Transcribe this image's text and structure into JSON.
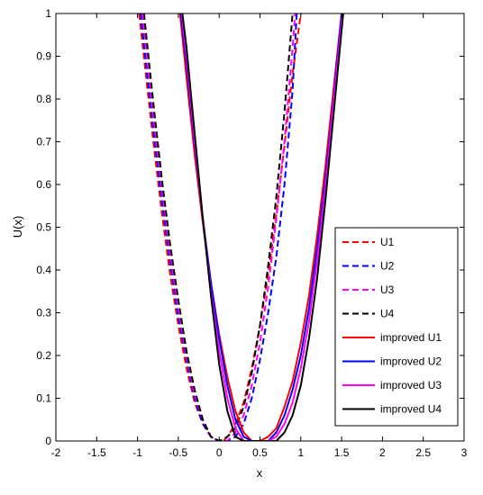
{
  "chart_data": {
    "type": "line",
    "title": "",
    "xlabel": "x",
    "ylabel": "U(x)",
    "xlim": [
      -2,
      3
    ],
    "ylim": [
      0,
      1
    ],
    "xticks": [
      -2,
      -1.5,
      -1,
      -0.5,
      0,
      0.5,
      1,
      1.5,
      2,
      2.5,
      3
    ],
    "xtick_labels": [
      "-2",
      "-1.5",
      "-1",
      "-0.5",
      "0",
      "0.5",
      "1",
      "1.5",
      "2",
      "2.5",
      "3"
    ],
    "yticks": [
      0,
      0.1,
      0.2,
      0.3,
      0.4,
      0.5,
      0.6,
      0.7,
      0.8,
      0.9,
      1
    ],
    "ytick_labels": [
      "0",
      "0.1",
      "0.2",
      "0.3",
      "0.4",
      "0.5",
      "0.6",
      "0.7",
      "0.8",
      "0.9",
      "1"
    ],
    "grid": false,
    "legend_position": "lower-right",
    "series": [
      {
        "name": "U1",
        "color": "#ff0000",
        "dash": true,
        "x": [
          -0.98,
          -0.9,
          -0.8,
          -0.7,
          -0.6,
          -0.5,
          -0.4,
          -0.3,
          -0.2,
          -0.1,
          0.0,
          0.05,
          0.1,
          0.2,
          0.3,
          0.4,
          0.5,
          0.6,
          0.7,
          0.8,
          0.9,
          0.95,
          1.0
        ],
        "y": [
          1.0,
          0.86,
          0.69,
          0.53,
          0.39,
          0.27,
          0.17,
          0.09,
          0.04,
          0.01,
          0.0,
          0.0,
          0.01,
          0.04,
          0.09,
          0.17,
          0.27,
          0.39,
          0.53,
          0.69,
          0.86,
          0.93,
          1.0
        ]
      },
      {
        "name": "U2",
        "color": "#0000ff",
        "dash": true,
        "x": [
          -0.96,
          -0.9,
          -0.8,
          -0.7,
          -0.6,
          -0.5,
          -0.4,
          -0.3,
          -0.2,
          -0.1,
          0.0,
          0.1,
          0.2,
          0.3,
          0.4,
          0.5,
          0.6,
          0.7,
          0.8,
          0.9,
          0.95
        ],
        "y": [
          1.0,
          0.89,
          0.72,
          0.56,
          0.42,
          0.29,
          0.19,
          0.1,
          0.04,
          0.01,
          0.0,
          0.0,
          0.01,
          0.04,
          0.1,
          0.19,
          0.3,
          0.43,
          0.6,
          0.82,
          1.0
        ]
      },
      {
        "name": "U3",
        "color": "#ff00ff",
        "dash": true,
        "x": [
          -0.94,
          -0.9,
          -0.8,
          -0.7,
          -0.6,
          -0.5,
          -0.4,
          -0.3,
          -0.2,
          -0.1,
          0.0,
          0.1,
          0.2,
          0.3,
          0.4,
          0.5,
          0.6,
          0.7,
          0.8,
          0.9,
          0.93
        ],
        "y": [
          1.0,
          0.93,
          0.75,
          0.59,
          0.44,
          0.31,
          0.2,
          0.11,
          0.05,
          0.01,
          0.0,
          0.0,
          0.02,
          0.06,
          0.13,
          0.23,
          0.36,
          0.52,
          0.7,
          0.92,
          1.0
        ]
      },
      {
        "name": "U4",
        "color": "#000000",
        "dash": true,
        "x": [
          -0.92,
          -0.8,
          -0.7,
          -0.6,
          -0.5,
          -0.4,
          -0.3,
          -0.2,
          -0.1,
          0.0,
          0.1,
          0.2,
          0.3,
          0.4,
          0.5,
          0.6,
          0.7,
          0.8,
          0.9
        ],
        "y": [
          1.0,
          0.78,
          0.61,
          0.46,
          0.33,
          0.21,
          0.12,
          0.05,
          0.01,
          0.0,
          0.01,
          0.03,
          0.08,
          0.16,
          0.27,
          0.41,
          0.57,
          0.77,
          1.0
        ]
      },
      {
        "name": "improved U1",
        "color": "#ff0000",
        "dash": false,
        "x": [
          -0.48,
          -0.4,
          -0.3,
          -0.2,
          -0.1,
          0.0,
          0.1,
          0.2,
          0.3,
          0.4,
          0.5,
          0.6,
          0.7,
          0.8,
          0.9,
          1.0,
          1.1,
          1.2,
          1.3,
          1.4,
          1.5
        ],
        "y": [
          1.0,
          0.85,
          0.67,
          0.51,
          0.37,
          0.25,
          0.15,
          0.07,
          0.02,
          0.0,
          0.0,
          0.01,
          0.03,
          0.08,
          0.14,
          0.23,
          0.34,
          0.48,
          0.64,
          0.82,
          1.0
        ]
      },
      {
        "name": "improved U2",
        "color": "#0000ff",
        "dash": false,
        "x": [
          -0.47,
          -0.4,
          -0.3,
          -0.2,
          -0.1,
          0.0,
          0.1,
          0.2,
          0.3,
          0.4,
          0.5,
          0.6,
          0.7,
          0.8,
          0.9,
          1.0,
          1.1,
          1.2,
          1.3,
          1.4,
          1.5
        ],
        "y": [
          1.0,
          0.88,
          0.69,
          0.52,
          0.37,
          0.24,
          0.13,
          0.05,
          0.01,
          0.0,
          0.0,
          0.0,
          0.02,
          0.06,
          0.12,
          0.2,
          0.31,
          0.45,
          0.61,
          0.8,
          1.0
        ]
      },
      {
        "name": "improved U3",
        "color": "#ff00ff",
        "dash": false,
        "x": [
          -0.46,
          -0.4,
          -0.3,
          -0.2,
          -0.1,
          0.0,
          0.1,
          0.2,
          0.3,
          0.4,
          0.5,
          0.6,
          0.7,
          0.8,
          0.9,
          1.0,
          1.1,
          1.2,
          1.3,
          1.4,
          1.51
        ],
        "y": [
          1.0,
          0.9,
          0.7,
          0.52,
          0.35,
          0.21,
          0.1,
          0.03,
          0.0,
          0.0,
          0.0,
          0.0,
          0.01,
          0.04,
          0.09,
          0.17,
          0.28,
          0.42,
          0.59,
          0.79,
          1.0
        ]
      },
      {
        "name": "improved U4",
        "color": "#000000",
        "dash": false,
        "x": [
          -0.45,
          -0.4,
          -0.3,
          -0.2,
          -0.1,
          0.0,
          0.1,
          0.2,
          0.3,
          0.4,
          0.5,
          0.6,
          0.7,
          0.8,
          0.9,
          1.0,
          1.1,
          1.2,
          1.3,
          1.4,
          1.52
        ],
        "y": [
          1.0,
          0.92,
          0.72,
          0.52,
          0.34,
          0.18,
          0.07,
          0.01,
          0.0,
          0.0,
          0.0,
          0.0,
          0.0,
          0.02,
          0.06,
          0.13,
          0.24,
          0.38,
          0.56,
          0.76,
          1.0
        ]
      }
    ]
  }
}
